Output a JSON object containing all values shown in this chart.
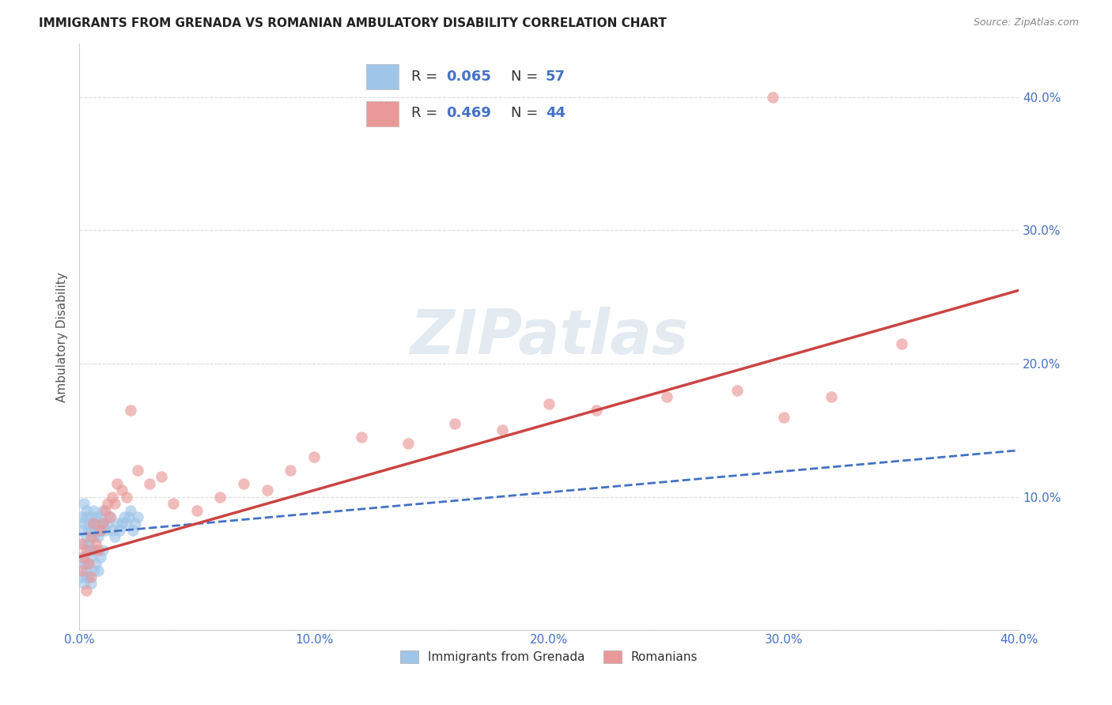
{
  "title": "IMMIGRANTS FROM GRENADA VS ROMANIAN AMBULATORY DISABILITY CORRELATION CHART",
  "source": "Source: ZipAtlas.com",
  "ylabel": "Ambulatory Disability",
  "tick_label_color": "#4472c4",
  "ylabel_color": "#555555",
  "x_min": 0.0,
  "x_max": 0.4,
  "y_min": 0.0,
  "y_max": 0.44,
  "x_ticks": [
    0.0,
    0.1,
    0.2,
    0.3,
    0.4
  ],
  "x_tick_labels": [
    "0.0%",
    "10.0%",
    "20.0%",
    "30.0%",
    "40.0%"
  ],
  "y_ticks": [
    0.0,
    0.1,
    0.2,
    0.3,
    0.4
  ],
  "y_tick_labels": [
    "",
    "10.0%",
    "20.0%",
    "30.0%",
    "40.0%"
  ],
  "blue_color": "#9fc5e8",
  "pink_color": "#ea9999",
  "blue_line_color": "#4472c4",
  "pink_line_color": "#cc4444",
  "blue_scatter_x": [
    0.001,
    0.001,
    0.002,
    0.002,
    0.002,
    0.003,
    0.003,
    0.003,
    0.004,
    0.004,
    0.004,
    0.005,
    0.005,
    0.005,
    0.006,
    0.006,
    0.006,
    0.007,
    0.007,
    0.008,
    0.008,
    0.009,
    0.009,
    0.01,
    0.01,
    0.011,
    0.012,
    0.013,
    0.014,
    0.015,
    0.016,
    0.017,
    0.018,
    0.019,
    0.02,
    0.021,
    0.022,
    0.023,
    0.024,
    0.025,
    0.001,
    0.002,
    0.003,
    0.004,
    0.005,
    0.006,
    0.007,
    0.008,
    0.009,
    0.01,
    0.001,
    0.002,
    0.003,
    0.003,
    0.004,
    0.005,
    0.006
  ],
  "blue_scatter_y": [
    0.075,
    0.085,
    0.065,
    0.08,
    0.095,
    0.07,
    0.085,
    0.09,
    0.075,
    0.065,
    0.08,
    0.06,
    0.075,
    0.085,
    0.07,
    0.08,
    0.09,
    0.075,
    0.085,
    0.07,
    0.08,
    0.075,
    0.085,
    0.08,
    0.09,
    0.075,
    0.08,
    0.085,
    0.075,
    0.07,
    0.08,
    0.075,
    0.08,
    0.085,
    0.08,
    0.085,
    0.09,
    0.075,
    0.08,
    0.085,
    0.055,
    0.05,
    0.045,
    0.06,
    0.055,
    0.06,
    0.05,
    0.045,
    0.055,
    0.06,
    0.04,
    0.035,
    0.04,
    0.05,
    0.04,
    0.035,
    0.045
  ],
  "pink_scatter_x": [
    0.001,
    0.002,
    0.003,
    0.004,
    0.005,
    0.006,
    0.007,
    0.008,
    0.009,
    0.01,
    0.011,
    0.012,
    0.013,
    0.014,
    0.015,
    0.016,
    0.018,
    0.02,
    0.022,
    0.025,
    0.03,
    0.035,
    0.04,
    0.05,
    0.06,
    0.07,
    0.08,
    0.09,
    0.1,
    0.12,
    0.14,
    0.16,
    0.18,
    0.2,
    0.22,
    0.25,
    0.28,
    0.3,
    0.32,
    0.35,
    0.001,
    0.003,
    0.005,
    0.295
  ],
  "pink_scatter_y": [
    0.065,
    0.055,
    0.06,
    0.05,
    0.07,
    0.08,
    0.065,
    0.06,
    0.075,
    0.08,
    0.09,
    0.095,
    0.085,
    0.1,
    0.095,
    0.11,
    0.105,
    0.1,
    0.165,
    0.12,
    0.11,
    0.115,
    0.095,
    0.09,
    0.1,
    0.11,
    0.105,
    0.12,
    0.13,
    0.145,
    0.14,
    0.155,
    0.15,
    0.17,
    0.165,
    0.175,
    0.18,
    0.16,
    0.175,
    0.215,
    0.045,
    0.03,
    0.04,
    0.4
  ],
  "watermark": "ZIPatlas",
  "background_color": "#ffffff",
  "grid_color": "#dddddd"
}
